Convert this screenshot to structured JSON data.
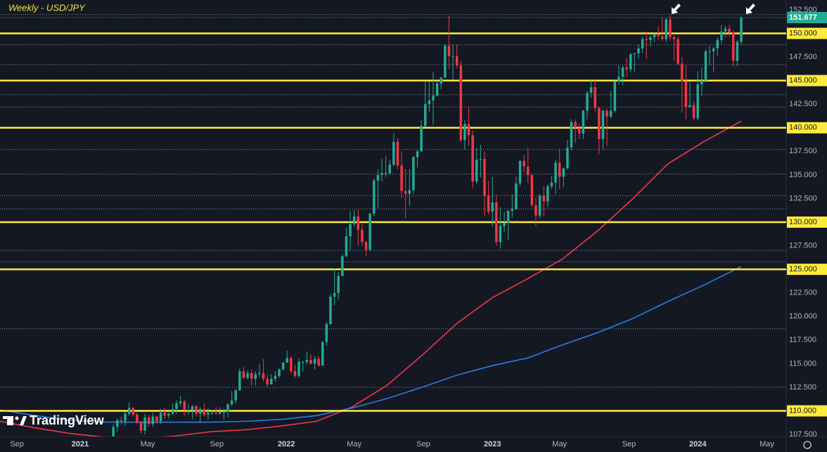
{
  "chart_data": {
    "type": "candlestick",
    "title": "Weekly  - USD/JPY",
    "brand": "TradingView",
    "up_color": "#22ab94",
    "down_color": "#f23645",
    "xlim": [
      -28.7,
      170.4
    ],
    "xticks": [
      {
        "value": -24.4,
        "label": "Sep"
      },
      {
        "value": -8.4,
        "label": "2021"
      },
      {
        "value": 8.7,
        "label": "May"
      },
      {
        "value": 26.2,
        "label": "Sep"
      },
      {
        "value": 43.8,
        "label": "2022"
      },
      {
        "value": 61,
        "label": "May"
      },
      {
        "value": 78.5,
        "label": "Sep"
      },
      {
        "value": 96,
        "label": "2023"
      },
      {
        "value": 113,
        "label": "May"
      },
      {
        "value": 130.6,
        "label": "Sep"
      },
      {
        "value": 148,
        "label": "2024"
      },
      {
        "value": 165.5,
        "label": "May"
      }
    ],
    "ylim": [
      107.28,
      153.54
    ],
    "yticks": [
      {
        "value": 152.5,
        "label": "152.500"
      },
      {
        "value": 150,
        "label": "150.000"
      },
      {
        "value": 147.5,
        "label": "147.500"
      },
      {
        "value": 145,
        "label": "145.000"
      },
      {
        "value": 142.5,
        "label": "142.500"
      },
      {
        "value": 140,
        "label": "140.000"
      },
      {
        "value": 137.5,
        "label": "137.500"
      },
      {
        "value": 135,
        "label": "135.000"
      },
      {
        "value": 132.5,
        "label": "132.500"
      },
      {
        "value": 130,
        "label": "130.000"
      },
      {
        "value": 127.5,
        "label": "127.500"
      },
      {
        "value": 125,
        "label": "125.000"
      },
      {
        "value": 122.5,
        "label": "122.500"
      },
      {
        "value": 120,
        "label": "120.000"
      },
      {
        "value": 117.5,
        "label": "117.500"
      },
      {
        "value": 115,
        "label": "115.000"
      },
      {
        "value": 112.5,
        "label": "112.500"
      },
      {
        "value": 110,
        "label": "110.000"
      },
      {
        "value": 107.5,
        "label": "107.500"
      }
    ],
    "level_color": "#ffeb3b",
    "levels": [
      {
        "value": 150,
        "label": "150.000"
      },
      {
        "value": 145,
        "label": "145.000"
      },
      {
        "value": 140,
        "label": "140.000"
      },
      {
        "value": 130,
        "label": "130.000"
      },
      {
        "value": 125,
        "label": "125.000"
      },
      {
        "value": 110,
        "label": "110.000"
      }
    ],
    "dotted_color": "#8a8f9c",
    "dotted_levels": [
      152.0,
      148.8,
      146.7,
      143.5,
      142.2,
      137.7,
      135.1,
      132.8,
      131.4,
      127.0,
      125.8,
      118.7,
      112.5
    ],
    "last_label": "151.677",
    "candles": [
      [
        106.6,
        108.6,
        106.4,
        108.3
      ],
      [
        108.3,
        109.2,
        107.8,
        109.0
      ],
      [
        109.0,
        109.4,
        108.5,
        108.9
      ],
      [
        108.9,
        109.9,
        108.4,
        109.7
      ],
      [
        109.7,
        110.9,
        109.5,
        110.3
      ],
      [
        110.3,
        110.4,
        109.4,
        109.6
      ],
      [
        109.6,
        109.8,
        108.6,
        108.8
      ],
      [
        108.8,
        108.9,
        107.6,
        107.9
      ],
      [
        107.9,
        109.7,
        107.5,
        109.3
      ],
      [
        109.3,
        109.6,
        108.3,
        108.6
      ],
      [
        108.6,
        109.8,
        108.3,
        109.4
      ],
      [
        109.4,
        109.5,
        108.6,
        108.9
      ],
      [
        108.9,
        110.2,
        108.6,
        109.8
      ],
      [
        109.8,
        110.3,
        109.2,
        109.5
      ],
      [
        109.5,
        109.8,
        109.2,
        109.7
      ],
      [
        109.7,
        110.8,
        109.6,
        110.2
      ],
      [
        110.2,
        111.1,
        109.7,
        110.8
      ],
      [
        110.8,
        111.6,
        110.5,
        111.0
      ],
      [
        111.0,
        111.2,
        109.5,
        110.1
      ],
      [
        110.1,
        110.7,
        109.6,
        110.1
      ],
      [
        110.1,
        110.6,
        109.1,
        110.5
      ],
      [
        110.5,
        110.6,
        109.4,
        109.7
      ],
      [
        109.7,
        110.4,
        108.7,
        110.2
      ],
      [
        110.2,
        110.8,
        109.4,
        109.6
      ],
      [
        109.6,
        110.3,
        109.1,
        109.8
      ],
      [
        109.8,
        110.1,
        109.6,
        109.8
      ],
      [
        109.8,
        110.4,
        109.6,
        109.7
      ],
      [
        109.7,
        110.4,
        109.6,
        109.9
      ],
      [
        109.9,
        110.2,
        109.1,
        109.9
      ],
      [
        109.9,
        110.8,
        109.3,
        110.7
      ],
      [
        110.7,
        112.1,
        110.5,
        111.1
      ],
      [
        111.1,
        112.3,
        110.8,
        112.2
      ],
      [
        112.2,
        114.5,
        112.1,
        114.2
      ],
      [
        114.2,
        114.7,
        113.4,
        113.5
      ],
      [
        113.5,
        114.3,
        113.3,
        114.0
      ],
      [
        114.0,
        114.4,
        112.7,
        113.4
      ],
      [
        113.4,
        114.2,
        112.7,
        113.9
      ],
      [
        113.9,
        115.0,
        113.6,
        114.0
      ],
      [
        114.0,
        115.5,
        113.1,
        113.4
      ],
      [
        113.4,
        113.9,
        112.5,
        112.8
      ],
      [
        112.8,
        113.9,
        112.8,
        113.4
      ],
      [
        113.4,
        114.2,
        113.1,
        113.7
      ],
      [
        113.7,
        114.5,
        113.5,
        114.4
      ],
      [
        114.4,
        115.2,
        114.3,
        115.1
      ],
      [
        115.1,
        116.4,
        115.1,
        115.6
      ],
      [
        115.6,
        115.8,
        114.0,
        114.2
      ],
      [
        114.2,
        114.9,
        113.5,
        113.7
      ],
      [
        113.7,
        115.6,
        113.5,
        115.2
      ],
      [
        115.2,
        115.3,
        114.2,
        115.2
      ],
      [
        115.2,
        116.3,
        114.9,
        115.4
      ],
      [
        115.4,
        116.0,
        114.9,
        115.0
      ],
      [
        115.0,
        115.8,
        114.4,
        115.5
      ],
      [
        115.5,
        115.8,
        114.7,
        114.8
      ],
      [
        114.8,
        117.4,
        114.8,
        117.3
      ],
      [
        117.3,
        119.4,
        116.9,
        119.2
      ],
      [
        119.2,
        122.4,
        119.1,
        122.1
      ],
      [
        122.1,
        125.1,
        121.2,
        122.5
      ],
      [
        122.5,
        124.7,
        121.8,
        124.3
      ],
      [
        124.3,
        126.6,
        124.3,
        126.4
      ],
      [
        126.4,
        129.4,
        126.3,
        128.5
      ],
      [
        128.5,
        131.2,
        126.9,
        129.8
      ],
      [
        129.8,
        131.3,
        129.5,
        130.6
      ],
      [
        130.6,
        131.3,
        127.5,
        129.2
      ],
      [
        129.2,
        129.8,
        127.5,
        127.9
      ],
      [
        127.9,
        128.0,
        126.4,
        127.1
      ],
      [
        127.1,
        131.0,
        126.9,
        130.9
      ],
      [
        130.9,
        134.6,
        130.6,
        134.4
      ],
      [
        134.4,
        135.6,
        131.5,
        135.0
      ],
      [
        135.0,
        136.7,
        134.3,
        135.2
      ],
      [
        135.2,
        137.0,
        134.8,
        135.2
      ],
      [
        135.2,
        136.6,
        135.0,
        136.1
      ],
      [
        136.1,
        139.4,
        135.9,
        138.5
      ],
      [
        138.5,
        138.9,
        135.6,
        136.0
      ],
      [
        136.0,
        137.5,
        132.5,
        133.3
      ],
      [
        133.3,
        135.6,
        130.4,
        133.0
      ],
      [
        133.0,
        135.6,
        131.7,
        133.4
      ],
      [
        133.4,
        137.0,
        133.0,
        136.9
      ],
      [
        136.9,
        137.7,
        135.8,
        137.5
      ],
      [
        137.5,
        140.8,
        137.5,
        140.2
      ],
      [
        140.2,
        144.9,
        140.1,
        142.5
      ],
      [
        142.5,
        144.9,
        141.7,
        142.9
      ],
      [
        142.9,
        145.9,
        140.3,
        143.4
      ],
      [
        143.4,
        145.0,
        143.3,
        144.7
      ],
      [
        144.7,
        145.4,
        144.1,
        145.3
      ],
      [
        145.3,
        148.9,
        145.3,
        148.7
      ],
      [
        148.7,
        151.9,
        146.2,
        147.6
      ],
      [
        147.6,
        148.8,
        145.1,
        147.6
      ],
      [
        147.6,
        148.8,
        146.3,
        146.6
      ],
      [
        146.6,
        147.1,
        138.5,
        138.7
      ],
      [
        138.7,
        140.8,
        137.7,
        140.4
      ],
      [
        140.4,
        142.3,
        138.1,
        139.2
      ],
      [
        139.2,
        139.7,
        133.6,
        134.3
      ],
      [
        134.3,
        137.9,
        134.1,
        136.6
      ],
      [
        136.6,
        138.2,
        134.7,
        136.7
      ],
      [
        136.7,
        137.5,
        130.6,
        132.8
      ],
      [
        132.8,
        134.4,
        130.8,
        131.1
      ],
      [
        131.1,
        134.8,
        129.5,
        132.1
      ],
      [
        132.1,
        132.9,
        127.5,
        127.9
      ],
      [
        127.9,
        131.6,
        127.2,
        129.6
      ],
      [
        129.6,
        131.1,
        128.9,
        129.9
      ],
      [
        129.9,
        131.2,
        128.1,
        131.2
      ],
      [
        131.2,
        132.9,
        130.5,
        131.4
      ],
      [
        131.4,
        134.8,
        131.3,
        134.1
      ],
      [
        134.1,
        136.5,
        133.8,
        136.5
      ],
      [
        136.5,
        137.1,
        135.3,
        135.9
      ],
      [
        135.9,
        137.9,
        134.1,
        135.0
      ],
      [
        135.0,
        135.1,
        131.6,
        131.8
      ],
      [
        131.8,
        132.6,
        129.6,
        130.7
      ],
      [
        130.7,
        133.0,
        130.4,
        132.8
      ],
      [
        132.8,
        133.8,
        130.6,
        132.2
      ],
      [
        132.2,
        134.0,
        131.6,
        133.8
      ],
      [
        133.8,
        134.9,
        133.5,
        134.2
      ],
      [
        134.2,
        136.6,
        133.0,
        136.3
      ],
      [
        136.3,
        137.8,
        133.5,
        134.8
      ],
      [
        134.8,
        135.8,
        133.7,
        135.7
      ],
      [
        135.7,
        138.7,
        135.6,
        137.9
      ],
      [
        137.9,
        140.9,
        137.6,
        140.6
      ],
      [
        140.6,
        140.9,
        138.4,
        140.0
      ],
      [
        140.0,
        140.4,
        138.8,
        139.4
      ],
      [
        139.4,
        141.9,
        138.8,
        141.8
      ],
      [
        141.8,
        143.9,
        140.9,
        143.7
      ],
      [
        143.7,
        145.0,
        143.2,
        144.3
      ],
      [
        144.3,
        145.0,
        141.6,
        142.1
      ],
      [
        142.1,
        142.2,
        137.2,
        138.8
      ],
      [
        138.8,
        141.9,
        137.7,
        141.8
      ],
      [
        141.8,
        142.0,
        138.1,
        141.2
      ],
      [
        141.2,
        143.9,
        141.0,
        141.8
      ],
      [
        141.8,
        145.0,
        141.6,
        144.9
      ],
      [
        144.9,
        146.6,
        144.6,
        145.4
      ],
      [
        145.4,
        146.6,
        144.5,
        146.4
      ],
      [
        146.4,
        147.4,
        145.4,
        146.2
      ],
      [
        146.2,
        147.9,
        145.9,
        147.8
      ],
      [
        147.8,
        147.9,
        145.9,
        147.9
      ],
      [
        147.9,
        148.8,
        147.3,
        148.4
      ],
      [
        148.4,
        149.7,
        147.9,
        149.4
      ],
      [
        149.4,
        150.2,
        147.3,
        149.3
      ],
      [
        149.3,
        149.8,
        148.6,
        149.6
      ],
      [
        149.6,
        150.0,
        149.1,
        149.9
      ],
      [
        149.9,
        150.8,
        149.3,
        149.7
      ],
      [
        149.7,
        151.7,
        149.2,
        149.4
      ],
      [
        149.4,
        151.6,
        149.1,
        151.5
      ],
      [
        151.5,
        151.9,
        149.2,
        149.6
      ],
      [
        149.6,
        149.8,
        147.1,
        149.4
      ],
      [
        149.4,
        149.7,
        146.6,
        146.8
      ],
      [
        146.8,
        147.5,
        141.6,
        144.9
      ],
      [
        144.9,
        146.6,
        140.9,
        142.2
      ],
      [
        142.2,
        144.9,
        142.1,
        142.4
      ],
      [
        142.4,
        142.8,
        140.8,
        141.0
      ],
      [
        141.0,
        146.0,
        140.8,
        144.6
      ],
      [
        144.6,
        146.4,
        143.4,
        145.0
      ],
      [
        145.0,
        148.3,
        144.8,
        148.1
      ],
      [
        148.1,
        148.7,
        146.6,
        148.1
      ],
      [
        148.1,
        148.6,
        145.9,
        148.4
      ],
      [
        148.4,
        149.6,
        147.6,
        149.3
      ],
      [
        149.3,
        150.9,
        148.9,
        150.2
      ],
      [
        150.2,
        150.8,
        149.6,
        150.5
      ],
      [
        150.5,
        150.9,
        149.7,
        150.1
      ],
      [
        150.1,
        150.3,
        146.5,
        147.1
      ],
      [
        147.1,
        149.3,
        146.5,
        149.1
      ],
      [
        149.1,
        151.9,
        148.8,
        151.677
      ]
    ],
    "series": [
      {
        "color": "#f23645",
        "x": [
          -28.7,
          -19.8,
          -10.9,
          -2,
          6.9,
          15.9,
          24.8,
          33.7,
          42.6,
          51.5,
          60.4,
          69.3,
          78.2,
          87.1,
          96,
          104.9,
          113.8,
          122.7,
          131.6,
          140.5,
          149.4,
          159
        ],
        "values": [
          108.9,
          108.2,
          107.6,
          107.2,
          107.0,
          107.35,
          107.8,
          108.0,
          108.4,
          108.9,
          110.4,
          112.7,
          115.9,
          119.3,
          122.0,
          124.0,
          126.1,
          129.1,
          132.5,
          136.2,
          138.5,
          140.7
        ]
      },
      {
        "color": "#2a7de1",
        "x": [
          -28.7,
          -19.8,
          -10.9,
          -2,
          6.9,
          15.9,
          24.8,
          33.7,
          42.6,
          51.5,
          60.4,
          69.3,
          78.2,
          87.1,
          96,
          104.9,
          113.8,
          122.7,
          131.6,
          140.5,
          149.4,
          159
        ],
        "values": [
          110.1,
          109.5,
          109.0,
          108.8,
          108.8,
          108.8,
          108.8,
          108.9,
          109.1,
          109.5,
          110.3,
          111.3,
          112.5,
          113.8,
          114.8,
          115.6,
          117.0,
          118.3,
          119.8,
          121.6,
          123.3,
          125.3
        ]
      }
    ]
  }
}
